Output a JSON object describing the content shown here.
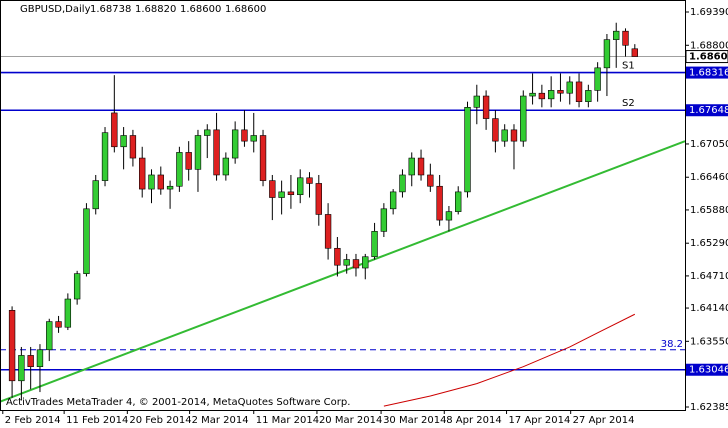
{
  "chart_data": {
    "type": "candlestick",
    "title": "GBPUSD,Daily",
    "header_values": [
      {
        "value": 1.68738,
        "label": "1.68738"
      },
      {
        "value": 1.6882,
        "label": "1.68820"
      },
      {
        "value": 1.686,
        "label": "1.68600"
      },
      {
        "value": 1.686,
        "label": "1.68600"
      }
    ],
    "footer": "ActivTrades MetaTrader 4, © 2001-2014, MetaQuotes Software Corp.",
    "bull_color": "#33cc33",
    "bear_color": "#dd2020",
    "open": [
      1.641,
      1.6285,
      1.633,
      1.631,
      1.634,
      1.639,
      1.638,
      1.643,
      1.6475,
      1.659,
      1.664,
      1.676,
      1.67,
      1.672,
      1.668,
      1.6625,
      1.665,
      1.6625,
      1.663,
      1.669,
      1.666,
      1.672,
      1.673,
      1.665,
      1.668,
      1.673,
      1.671,
      1.672,
      1.664,
      1.661,
      1.662,
      1.6615,
      1.6645,
      1.6635,
      1.658,
      1.652,
      1.649,
      1.65,
      1.6485,
      1.6505,
      1.655,
      1.659,
      1.662,
      1.665,
      1.668,
      1.665,
      1.663,
      1.657,
      1.6585,
      1.662,
      1.677,
      1.679,
      1.675,
      1.671,
      1.673,
      1.671,
      1.679,
      1.6795,
      1.6785,
      1.68,
      1.6795,
      1.6815,
      1.678,
      1.68,
      1.684,
      1.689,
      1.6905,
      1.68738
    ],
    "high": [
      1.6417,
      1.6345,
      1.6345,
      1.635,
      1.6395,
      1.64,
      1.644,
      1.648,
      1.66,
      1.665,
      1.6735,
      1.6827,
      1.6735,
      1.673,
      1.67,
      1.666,
      1.6665,
      1.664,
      1.67,
      1.671,
      1.673,
      1.674,
      1.676,
      1.669,
      1.6745,
      1.6765,
      1.676,
      1.673,
      1.665,
      1.664,
      1.665,
      1.666,
      1.6655,
      1.665,
      1.66,
      1.654,
      1.651,
      1.651,
      1.651,
      1.6565,
      1.66,
      1.6625,
      1.666,
      1.669,
      1.6695,
      1.667,
      1.665,
      1.6595,
      1.663,
      1.678,
      1.681,
      1.68,
      1.6765,
      1.674,
      1.674,
      1.68,
      1.683,
      1.681,
      1.6825,
      1.683,
      1.6825,
      1.683,
      1.681,
      1.685,
      1.69,
      1.692,
      1.691,
      1.6882
    ],
    "low": [
      1.6255,
      1.625,
      1.627,
      1.6265,
      1.632,
      1.637,
      1.6375,
      1.642,
      1.647,
      1.658,
      1.663,
      1.669,
      1.666,
      1.6665,
      1.661,
      1.66,
      1.6615,
      1.659,
      1.662,
      1.664,
      1.662,
      1.668,
      1.664,
      1.664,
      1.667,
      1.67,
      1.669,
      1.663,
      1.657,
      1.658,
      1.659,
      1.66,
      1.661,
      1.656,
      1.65,
      1.647,
      1.6475,
      1.647,
      1.6465,
      1.65,
      1.654,
      1.658,
      1.661,
      1.663,
      1.664,
      1.662,
      1.656,
      1.655,
      1.658,
      1.661,
      1.674,
      1.673,
      1.669,
      1.67,
      1.666,
      1.67,
      1.6775,
      1.677,
      1.677,
      1.678,
      1.6775,
      1.677,
      1.677,
      1.678,
      1.679,
      1.684,
      1.686,
      1.686
    ],
    "close": [
      1.6285,
      1.633,
      1.631,
      1.634,
      1.639,
      1.638,
      1.643,
      1.6475,
      1.659,
      1.664,
      1.6725,
      1.67,
      1.672,
      1.668,
      1.6625,
      1.665,
      1.6625,
      1.663,
      1.669,
      1.666,
      1.672,
      1.673,
      1.665,
      1.668,
      1.673,
      1.671,
      1.672,
      1.664,
      1.661,
      1.662,
      1.6615,
      1.6645,
      1.6635,
      1.658,
      1.652,
      1.649,
      1.65,
      1.6485,
      1.6505,
      1.655,
      1.659,
      1.662,
      1.665,
      1.668,
      1.665,
      1.663,
      1.657,
      1.6585,
      1.662,
      1.677,
      1.679,
      1.675,
      1.671,
      1.673,
      1.671,
      1.679,
      1.6795,
      1.6785,
      1.68,
      1.6795,
      1.6815,
      1.678,
      1.68,
      1.684,
      1.689,
      1.6905,
      1.688,
      1.686
    ],
    "xlim": [
      -1.3,
      72.4
    ],
    "xticks": [
      {
        "value": -1,
        "label": "2 Feb 2014"
      },
      {
        "value": 5.6,
        "label": "11 Feb 2014"
      },
      {
        "value": 12.4,
        "label": "20 Feb 2014"
      },
      {
        "value": 19.1,
        "label": "2 Mar 2014"
      },
      {
        "value": 26,
        "label": "11 Mar 2014"
      },
      {
        "value": 32.8,
        "label": "20 Mar 2014"
      },
      {
        "value": 39.7,
        "label": "30 Mar 2014"
      },
      {
        "value": 46.5,
        "label": "8 Apr 2014"
      },
      {
        "value": 53.2,
        "label": "17 Apr 2014"
      },
      {
        "value": 60.1,
        "label": "27 Apr 2014"
      }
    ],
    "ylim": [
      1.62332,
      1.69603
    ],
    "yticks": [
      {
        "value": 1.6939,
        "label": "1.69390"
      },
      {
        "value": 1.688,
        "label": "1.68800"
      },
      {
        "value": 1.6705,
        "label": "1.67050"
      },
      {
        "value": 1.6646,
        "label": "1.66460"
      },
      {
        "value": 1.6588,
        "label": "1.65880"
      },
      {
        "value": 1.6529,
        "label": "1.65290"
      },
      {
        "value": 1.6471,
        "label": "1.64710"
      },
      {
        "value": 1.6414,
        "label": "1.64140"
      },
      {
        "value": 1.6355,
        "label": "1.63550"
      },
      {
        "value": 1.62385,
        "label": "1.62385"
      }
    ],
    "price_line": {
      "value": 1.686,
      "label": "1.68600",
      "color": "#a0a0a0"
    },
    "levels": [
      {
        "value": 1.68316,
        "label": "1.68316",
        "name": "S1",
        "color": "#0000cc"
      },
      {
        "value": 1.67648,
        "label": "1.67648",
        "name": "S2",
        "color": "#0000cc"
      },
      {
        "value": 1.63046,
        "label": "1.63046",
        "color": "#0000cc"
      }
    ],
    "fibo": {
      "value": 1.634,
      "label": "38.2",
      "color": "#0000cc"
    },
    "trendline": {
      "x": [
        -1.3,
        72.4
      ],
      "y": [
        1.6248,
        1.671
      ],
      "color": "#33bb33"
    },
    "moving_average": {
      "x": [
        40,
        45,
        50,
        55,
        60,
        63,
        67
      ],
      "y": [
        1.624,
        1.6258,
        1.628,
        1.631,
        1.6345,
        1.637,
        1.6403
      ],
      "color": "#cc0000"
    }
  }
}
